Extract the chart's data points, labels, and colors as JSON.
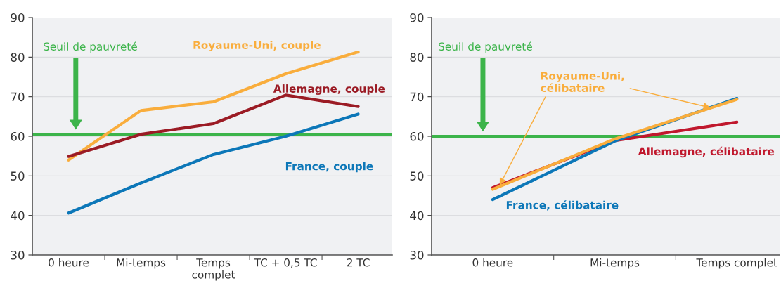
{
  "chart_data": [
    {
      "type": "line",
      "categories": [
        "0 heure",
        "Mi-temps",
        "Temps\ncomplet",
        "TC + 0,5 TC",
        "2 TC"
      ],
      "series": [
        {
          "name": "Royaume-Uni, couple",
          "color": "#f9ad3c",
          "values": [
            54.0,
            66.5,
            68.7,
            75.8,
            81.3
          ]
        },
        {
          "name": "Allemagne, couple",
          "color": "#9b1b24",
          "values": [
            54.9,
            60.5,
            63.2,
            70.4,
            67.5
          ]
        },
        {
          "name": "France, couple",
          "color": "#0c77b8",
          "values": [
            40.6,
            48.2,
            55.4,
            60.0,
            65.6
          ]
        }
      ],
      "ylim": [
        30,
        90
      ],
      "yticks": [
        30,
        40,
        50,
        60,
        70,
        80,
        90
      ],
      "grid": "y",
      "ref_lines": [
        {
          "axis": "y",
          "value": 60.5,
          "label": "Seuil de pauvreté",
          "color": "#3cb44a"
        }
      ]
    },
    {
      "type": "line",
      "categories": [
        "0 heure",
        "Mi-temps",
        "Temps complet"
      ],
      "series": [
        {
          "name": "Allemagne, célibataire",
          "color": "#c0182d",
          "values": [
            47.0,
            58.9,
            63.6
          ]
        },
        {
          "name": "France, célibataire",
          "color": "#0c77b8",
          "values": [
            44.0,
            58.8,
            69.6
          ]
        },
        {
          "name": "Royaume-Uni,\ncélibataire",
          "color": "#f9ad3c",
          "values": [
            46.6,
            59.3,
            69.3
          ]
        }
      ],
      "ylim": [
        30,
        90
      ],
      "yticks": [
        30,
        40,
        50,
        60,
        70,
        80,
        90
      ],
      "grid": "y",
      "ref_lines": [
        {
          "axis": "y",
          "value": 60,
          "label": "Seuil de pauvreté",
          "color": "#3cb44a"
        }
      ]
    }
  ]
}
